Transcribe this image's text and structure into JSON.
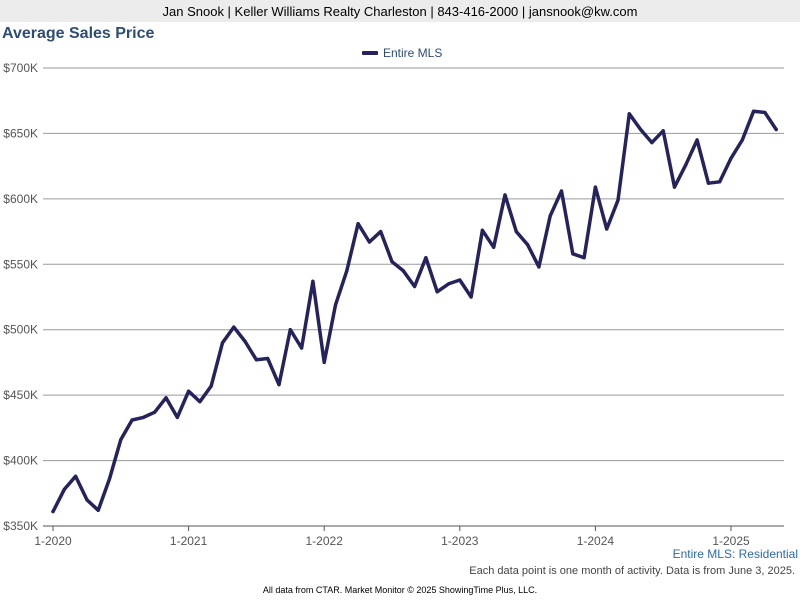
{
  "header": {
    "text": "Jan Snook | Keller Williams Realty Charleston | 843-416-2000 | jansnook@kw.com"
  },
  "series_caption": "Entire MLS: Residential",
  "note": "Each data point is one month of activity. Data is from June 3, 2025.",
  "footer": "All data from CTAR. Market Monitor © 2025 ShowingTime Plus, LLC.",
  "chart_data": {
    "type": "line",
    "title": "Average Sales Price",
    "xlabel": "",
    "ylabel": "",
    "legend_position": "top-center",
    "grid": true,
    "ylim": [
      350000,
      700000
    ],
    "y_ticks": [
      350000,
      400000,
      450000,
      500000,
      550000,
      600000,
      650000,
      700000
    ],
    "y_tick_labels": [
      "$350K",
      "$400K",
      "$450K",
      "$500K",
      "$550K",
      "$600K",
      "$650K",
      "$700K"
    ],
    "x_tick_labels": [
      "1-2020",
      "1-2021",
      "1-2022",
      "1-2023",
      "1-2024",
      "1-2025"
    ],
    "x_tick_indices": [
      0,
      12,
      24,
      36,
      48,
      60
    ],
    "x": [
      "1-2020",
      "2-2020",
      "3-2020",
      "4-2020",
      "5-2020",
      "6-2020",
      "7-2020",
      "8-2020",
      "9-2020",
      "10-2020",
      "11-2020",
      "12-2020",
      "1-2021",
      "2-2021",
      "3-2021",
      "4-2021",
      "5-2021",
      "6-2021",
      "7-2021",
      "8-2021",
      "9-2021",
      "10-2021",
      "11-2021",
      "12-2021",
      "1-2022",
      "2-2022",
      "3-2022",
      "4-2022",
      "5-2022",
      "6-2022",
      "7-2022",
      "8-2022",
      "9-2022",
      "10-2022",
      "11-2022",
      "12-2022",
      "1-2023",
      "2-2023",
      "3-2023",
      "4-2023",
      "5-2023",
      "6-2023",
      "7-2023",
      "8-2023",
      "9-2023",
      "10-2023",
      "11-2023",
      "12-2023",
      "1-2024",
      "2-2024",
      "3-2024",
      "4-2024",
      "5-2024",
      "6-2024",
      "7-2024",
      "8-2024",
      "9-2024",
      "10-2024",
      "11-2024",
      "12-2024",
      "1-2025",
      "2-2025",
      "3-2025",
      "4-2025",
      "5-2025"
    ],
    "series": [
      {
        "name": "Entire MLS",
        "color": "#25235e",
        "values": [
          361000,
          378000,
          388000,
          370000,
          362000,
          386000,
          416000,
          431000,
          433000,
          437000,
          448000,
          433000,
          453000,
          445000,
          457000,
          490000,
          502000,
          491000,
          477000,
          478000,
          458000,
          500000,
          486000,
          537000,
          475000,
          519000,
          545000,
          581000,
          567000,
          575000,
          552000,
          545000,
          533000,
          555000,
          529000,
          535000,
          538000,
          525000,
          576000,
          563000,
          603000,
          575000,
          565000,
          548000,
          587000,
          606000,
          558000,
          555000,
          609000,
          577000,
          599000,
          665000,
          653000,
          643000,
          652000,
          609000,
          626000,
          645000,
          612000,
          613000,
          631000,
          645000,
          667000,
          666000,
          653000
        ]
      }
    ]
  }
}
